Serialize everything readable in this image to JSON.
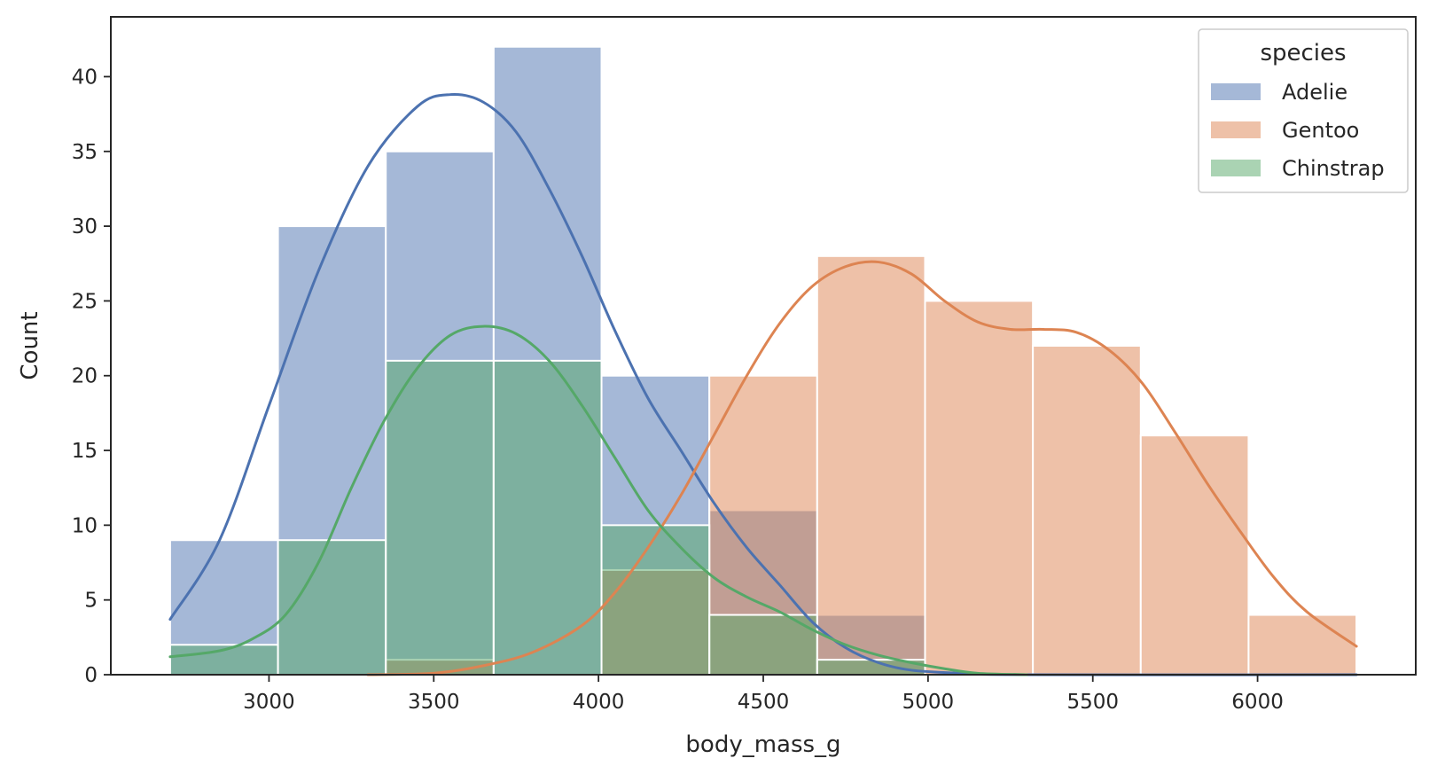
{
  "chart_data": {
    "type": "bar",
    "xlabel": "body_mass_g",
    "ylabel": "Count",
    "xlim": [
      2520,
      6480
    ],
    "ylim": [
      0,
      44
    ],
    "x_ticks": [
      3000,
      3500,
      4000,
      4500,
      5000,
      5500,
      6000
    ],
    "y_ticks": [
      0,
      5,
      10,
      15,
      20,
      25,
      30,
      35,
      40
    ],
    "bin_edges": [
      2700,
      3027.3,
      3354.5,
      3681.8,
      4009.1,
      4336.4,
      4663.6,
      4990.9,
      5318.2,
      5645.5,
      5972.7,
      6300
    ],
    "legend": {
      "title": "species",
      "position": "top-right"
    },
    "series": [
      {
        "name": "Adelie",
        "color": "#4c72b0",
        "counts": [
          9,
          30,
          35,
          42,
          20,
          11,
          4,
          0,
          0,
          0,
          0
        ],
        "kde": [
          [
            2700,
            3.7
          ],
          [
            2850,
            9
          ],
          [
            3000,
            18
          ],
          [
            3150,
            27
          ],
          [
            3300,
            34
          ],
          [
            3450,
            38
          ],
          [
            3550,
            38.8
          ],
          [
            3650,
            38.3
          ],
          [
            3750,
            36.3
          ],
          [
            3850,
            32.5
          ],
          [
            3950,
            28
          ],
          [
            4050,
            23
          ],
          [
            4150,
            18.5
          ],
          [
            4250,
            15
          ],
          [
            4350,
            11.5
          ],
          [
            4450,
            8.5
          ],
          [
            4550,
            6
          ],
          [
            4650,
            3.5
          ],
          [
            4750,
            1.8
          ],
          [
            4850,
            0.8
          ],
          [
            4950,
            0.3
          ],
          [
            5100,
            0.1
          ],
          [
            5300,
            0
          ],
          [
            6300,
            0
          ]
        ]
      },
      {
        "name": "Gentoo",
        "color": "#dd8452",
        "counts": [
          0,
          0,
          1,
          0,
          7,
          20,
          28,
          25,
          22,
          16,
          4
        ],
        "kde": [
          [
            3300,
            0
          ],
          [
            3500,
            0.1
          ],
          [
            3650,
            0.6
          ],
          [
            3800,
            1.5
          ],
          [
            3950,
            3.3
          ],
          [
            4050,
            5.5
          ],
          [
            4150,
            8.5
          ],
          [
            4250,
            12
          ],
          [
            4350,
            16
          ],
          [
            4450,
            20
          ],
          [
            4550,
            23.5
          ],
          [
            4650,
            26
          ],
          [
            4750,
            27.3
          ],
          [
            4850,
            27.6
          ],
          [
            4950,
            26.8
          ],
          [
            5050,
            25
          ],
          [
            5150,
            23.6
          ],
          [
            5250,
            23.1
          ],
          [
            5350,
            23.1
          ],
          [
            5450,
            22.9
          ],
          [
            5550,
            21.7
          ],
          [
            5650,
            19.5
          ],
          [
            5750,
            16.2
          ],
          [
            5850,
            12.7
          ],
          [
            5950,
            9.5
          ],
          [
            6050,
            6.5
          ],
          [
            6150,
            4.2
          ],
          [
            6300,
            1.9
          ]
        ]
      },
      {
        "name": "Chinstrap",
        "color": "#55a868",
        "counts": [
          2,
          9,
          21,
          21,
          10,
          4,
          1,
          0,
          0,
          0,
          0
        ],
        "kde": [
          [
            2700,
            1.2
          ],
          [
            2850,
            1.6
          ],
          [
            2950,
            2.4
          ],
          [
            3050,
            4
          ],
          [
            3150,
            7.5
          ],
          [
            3250,
            12.5
          ],
          [
            3350,
            17
          ],
          [
            3450,
            20.5
          ],
          [
            3550,
            22.7
          ],
          [
            3650,
            23.3
          ],
          [
            3750,
            22.8
          ],
          [
            3850,
            21
          ],
          [
            3950,
            18
          ],
          [
            4050,
            14.5
          ],
          [
            4150,
            11
          ],
          [
            4250,
            8.5
          ],
          [
            4350,
            6.5
          ],
          [
            4450,
            5.2
          ],
          [
            4550,
            4.2
          ],
          [
            4650,
            3
          ],
          [
            4750,
            2
          ],
          [
            4850,
            1.3
          ],
          [
            4950,
            0.8
          ],
          [
            5050,
            0.4
          ],
          [
            5150,
            0.1
          ],
          [
            5300,
            0
          ]
        ]
      }
    ]
  }
}
